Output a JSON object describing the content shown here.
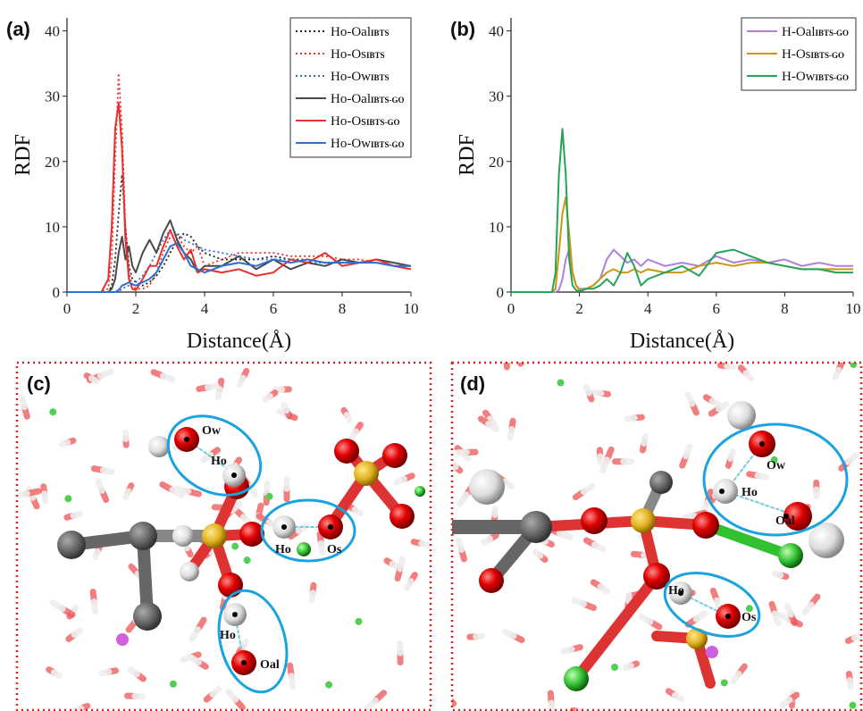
{
  "chart_data": [
    {
      "type": "line",
      "panel_label": "(a)",
      "y_label": "RDF",
      "x_label": "Distance(Å)",
      "xlim": [
        0,
        10
      ],
      "ylim": [
        0,
        42
      ],
      "xticks": [
        0,
        2,
        4,
        6,
        8,
        10
      ],
      "yticks": [
        0,
        10,
        20,
        30,
        40
      ],
      "legend": "top-right",
      "x": [
        0,
        1,
        1.2,
        1.3,
        1.4,
        1.5,
        1.6,
        1.7,
        1.8,
        1.9,
        2,
        2.2,
        2.4,
        2.6,
        2.8,
        3,
        3.2,
        3.4,
        3.6,
        3.8,
        4,
        4.5,
        5,
        5.5,
        6,
        6.5,
        7,
        7.5,
        8,
        8.5,
        9,
        9.5,
        10
      ],
      "series": [
        {
          "name": "Ho-Oal",
          "name_sub": "IBTS",
          "color": "#222222",
          "dash": "dotted",
          "values": [
            0,
            0,
            0,
            1,
            5,
            12,
            18,
            10,
            4,
            2,
            1.5,
            1,
            1.5,
            2.5,
            4,
            6,
            8,
            9,
            8.5,
            7,
            6,
            5,
            5,
            5,
            5.5,
            5,
            5,
            4.5,
            4.5,
            4.5,
            4.5,
            4,
            4
          ]
        },
        {
          "name": "Ho-Os",
          "name_sub": "IBTS",
          "color": "#e8302f",
          "dash": "dotted",
          "values": [
            0,
            0,
            0.5,
            5,
            20,
            33.5,
            25,
            10,
            3,
            1,
            0.5,
            0.5,
            1,
            3,
            6,
            8.5,
            8.8,
            7,
            6,
            7,
            4,
            5,
            6,
            6,
            6,
            5.5,
            5.5,
            5.5,
            5,
            5,
            4.5,
            4,
            4
          ]
        },
        {
          "name": "Ho-Ow",
          "name_sub": "IBTS",
          "color": "#2e6fd0",
          "dash": "dotted",
          "values": [
            0,
            0,
            0,
            0,
            0,
            0,
            0.5,
            0.8,
            1,
            1.2,
            1.5,
            2.5,
            4,
            6,
            8,
            9.5,
            9,
            8,
            7.5,
            7,
            6.5,
            6,
            5.5,
            5,
            5,
            5,
            4.5,
            4.5,
            4.5,
            4.5,
            4.5,
            4,
            4
          ]
        },
        {
          "name": "Ho-Oal",
          "name_sub": "IBTS-GO",
          "color": "#4a4a4a",
          "dash": "solid",
          "values": [
            0,
            0,
            0,
            0.5,
            2,
            6,
            8.5,
            5,
            7,
            4,
            3,
            6,
            8,
            6,
            9,
            11,
            8,
            6,
            5,
            3,
            4,
            4,
            5.5,
            3.5,
            5,
            3.5,
            4.5,
            4,
            5,
            4.5,
            5,
            4.5,
            4
          ]
        },
        {
          "name": "Ho-Os",
          "name_sub": "IBTS-GO",
          "color": "#e8302f",
          "dash": "solid",
          "values": [
            0,
            0,
            2,
            10,
            25,
            29,
            22,
            8,
            2,
            0.5,
            0.3,
            2,
            4,
            4,
            7,
            9.5,
            7,
            5,
            6.5,
            3,
            3.5,
            3,
            3.5,
            2.5,
            3,
            5,
            4.5,
            6,
            4,
            4.5,
            5,
            4,
            3.5
          ]
        },
        {
          "name": "Ho-Ow",
          "name_sub": "IBTS-GO",
          "color": "#2e6fd0",
          "dash": "solid",
          "values": [
            0,
            0,
            0,
            0,
            0,
            0.3,
            1,
            1.2,
            1.5,
            1.2,
            1,
            1.5,
            2,
            3,
            5,
            7,
            7.5,
            6,
            4,
            3.5,
            3,
            4,
            4.5,
            4,
            5,
            4.5,
            5,
            4.5,
            4.5,
            4.5,
            4.5,
            4,
            4
          ]
        }
      ]
    },
    {
      "type": "line",
      "panel_label": "(b)",
      "y_label": "RDF",
      "x_label": "Distance(Å)",
      "xlim": [
        0,
        10
      ],
      "ylim": [
        0,
        42
      ],
      "xticks": [
        0,
        2,
        4,
        6,
        8,
        10
      ],
      "yticks": [
        0,
        10,
        20,
        30,
        40
      ],
      "legend": "top-right",
      "x": [
        0,
        1,
        1.2,
        1.3,
        1.4,
        1.5,
        1.6,
        1.7,
        1.8,
        1.9,
        2,
        2.2,
        2.4,
        2.6,
        2.8,
        3,
        3.2,
        3.4,
        3.6,
        3.8,
        4,
        4.5,
        5,
        5.5,
        6,
        6.5,
        7,
        7.5,
        8,
        8.5,
        9,
        9.5,
        10
      ],
      "series": [
        {
          "name": "H-Oal",
          "name_sub": "IBTS-GO",
          "color": "#b07fdc",
          "dash": "solid",
          "values": [
            0,
            0,
            0,
            0,
            0.3,
            2,
            5,
            6.5,
            3,
            1,
            0.5,
            0.5,
            1,
            2,
            5,
            6.5,
            5.5,
            4.5,
            5,
            4,
            5,
            4,
            4.5,
            4,
            5.5,
            4.5,
            5,
            4.5,
            5,
            4,
            4.5,
            4,
            4
          ]
        },
        {
          "name": "H-Os",
          "name_sub": "IBTS-GO",
          "color": "#c9980f",
          "dash": "solid",
          "values": [
            0,
            0,
            0,
            0.5,
            6,
            12,
            14.5,
            9,
            3,
            1,
            0.3,
            0.5,
            1,
            2,
            3,
            3.5,
            3,
            3,
            3.5,
            3,
            3.5,
            3,
            3,
            4,
            4.5,
            4,
            4.5,
            4.5,
            4,
            3.5,
            3.5,
            3.5,
            3.5
          ]
        },
        {
          "name": "H-Ow",
          "name_sub": "IBTS-GO",
          "color": "#25a35a",
          "dash": "solid",
          "values": [
            0,
            0,
            0,
            3,
            18,
            25,
            18,
            5,
            1,
            0.3,
            0.1,
            0.5,
            0.5,
            1,
            2,
            1,
            3,
            6,
            4,
            1,
            2,
            3,
            4,
            2.5,
            6,
            6.5,
            5.5,
            4.5,
            4,
            3.5,
            3.5,
            3,
            3
          ]
        }
      ]
    }
  ],
  "panels": [
    {
      "label": "(c)",
      "atom_labels": [
        "Ow",
        "Ho",
        "Ho",
        "Os",
        "Ho",
        "Oal"
      ]
    },
    {
      "label": "(d)",
      "atom_labels": [
        "Ow",
        "Ho",
        "Oal",
        "Ho",
        "Os"
      ]
    }
  ]
}
